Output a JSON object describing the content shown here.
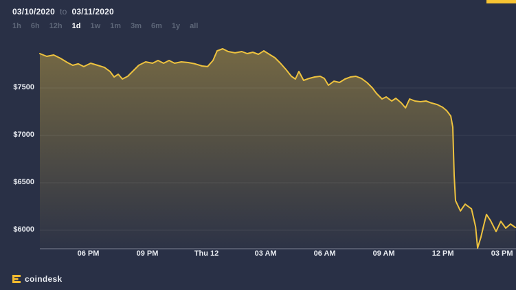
{
  "accent_color": "#f8c432",
  "header": {
    "date_from": "03/10/2020",
    "date_separator": "to",
    "date_to": "03/11/2020",
    "ranges": [
      {
        "label": "1h",
        "active": false
      },
      {
        "label": "6h",
        "active": false
      },
      {
        "label": "12h",
        "active": false
      },
      {
        "label": "1d",
        "active": true
      },
      {
        "label": "1w",
        "active": false
      },
      {
        "label": "1m",
        "active": false
      },
      {
        "label": "3m",
        "active": false
      },
      {
        "label": "6m",
        "active": false
      },
      {
        "label": "1y",
        "active": false
      },
      {
        "label": "all",
        "active": false
      }
    ]
  },
  "chart_data": {
    "type": "area",
    "title": "",
    "x_unit": "hours elapsed (range 03/10/2020 to 03/11/2020, ~24h span)",
    "y_unit": "USD price",
    "ylim": [
      5800,
      8000
    ],
    "grid": true,
    "legend": false,
    "line_color": "#edc23f",
    "area_gradient_top": "rgba(237,194,63,0.40)",
    "area_gradient_bottom": "rgba(237,194,63,0.02)",
    "x_ticks": [
      {
        "t": 2.46,
        "label": "06 PM"
      },
      {
        "t": 5.46,
        "label": "09 PM"
      },
      {
        "t": 8.46,
        "label": "Thu 12"
      },
      {
        "t": 11.46,
        "label": "03 AM"
      },
      {
        "t": 14.46,
        "label": "06 AM"
      },
      {
        "t": 17.46,
        "label": "09 AM"
      },
      {
        "t": 20.46,
        "label": "12 PM"
      },
      {
        "t": 23.46,
        "label": "03 PM"
      }
    ],
    "y_ticks": [
      {
        "value": 7500,
        "label": "$7500"
      },
      {
        "value": 7000,
        "label": "$7000"
      },
      {
        "value": 6500,
        "label": "$6500"
      },
      {
        "value": 6000,
        "label": "$6000"
      }
    ],
    "points": [
      [
        0.0,
        7862
      ],
      [
        0.35,
        7833
      ],
      [
        0.7,
        7848
      ],
      [
        1.05,
        7812
      ],
      [
        1.4,
        7768
      ],
      [
        1.67,
        7739
      ],
      [
        1.95,
        7754
      ],
      [
        2.23,
        7725
      ],
      [
        2.58,
        7761
      ],
      [
        2.93,
        7739
      ],
      [
        3.28,
        7717
      ],
      [
        3.56,
        7674
      ],
      [
        3.77,
        7616
      ],
      [
        3.98,
        7645
      ],
      [
        4.19,
        7594
      ],
      [
        4.46,
        7623
      ],
      [
        4.74,
        7681
      ],
      [
        5.02,
        7739
      ],
      [
        5.37,
        7775
      ],
      [
        5.72,
        7761
      ],
      [
        6.0,
        7790
      ],
      [
        6.28,
        7761
      ],
      [
        6.56,
        7790
      ],
      [
        6.84,
        7761
      ],
      [
        7.18,
        7775
      ],
      [
        7.53,
        7768
      ],
      [
        7.88,
        7754
      ],
      [
        8.23,
        7732
      ],
      [
        8.51,
        7725
      ],
      [
        8.79,
        7790
      ],
      [
        9.0,
        7891
      ],
      [
        9.28,
        7913
      ],
      [
        9.56,
        7884
      ],
      [
        9.91,
        7870
      ],
      [
        10.25,
        7884
      ],
      [
        10.53,
        7862
      ],
      [
        10.81,
        7877
      ],
      [
        11.09,
        7855
      ],
      [
        11.37,
        7891
      ],
      [
        11.65,
        7855
      ],
      [
        11.93,
        7819
      ],
      [
        12.21,
        7761
      ],
      [
        12.49,
        7696
      ],
      [
        12.77,
        7623
      ],
      [
        12.97,
        7594
      ],
      [
        13.15,
        7674
      ],
      [
        13.39,
        7580
      ],
      [
        13.67,
        7601
      ],
      [
        13.95,
        7616
      ],
      [
        14.23,
        7623
      ],
      [
        14.44,
        7601
      ],
      [
        14.65,
        7529
      ],
      [
        14.93,
        7572
      ],
      [
        15.21,
        7558
      ],
      [
        15.49,
        7594
      ],
      [
        15.77,
        7616
      ],
      [
        16.04,
        7623
      ],
      [
        16.32,
        7601
      ],
      [
        16.6,
        7558
      ],
      [
        16.88,
        7500
      ],
      [
        17.09,
        7442
      ],
      [
        17.37,
        7384
      ],
      [
        17.58,
        7406
      ],
      [
        17.86,
        7362
      ],
      [
        18.07,
        7391
      ],
      [
        18.35,
        7341
      ],
      [
        18.56,
        7290
      ],
      [
        18.77,
        7384
      ],
      [
        19.04,
        7362
      ],
      [
        19.32,
        7355
      ],
      [
        19.6,
        7362
      ],
      [
        19.88,
        7341
      ],
      [
        20.16,
        7326
      ],
      [
        20.44,
        7297
      ],
      [
        20.65,
        7261
      ],
      [
        20.86,
        7203
      ],
      [
        20.96,
        7087
      ],
      [
        21.03,
        6580
      ],
      [
        21.1,
        6312
      ],
      [
        21.35,
        6203
      ],
      [
        21.59,
        6275
      ],
      [
        21.91,
        6225
      ],
      [
        22.12,
        6036
      ],
      [
        22.22,
        5812
      ],
      [
        22.39,
        5928
      ],
      [
        22.53,
        6051
      ],
      [
        22.67,
        6167
      ],
      [
        22.88,
        6101
      ],
      [
        23.16,
        5986
      ],
      [
        23.4,
        6094
      ],
      [
        23.65,
        6022
      ],
      [
        23.89,
        6065
      ],
      [
        24.14,
        6029
      ]
    ]
  },
  "footer": {
    "brand": "coindesk"
  }
}
